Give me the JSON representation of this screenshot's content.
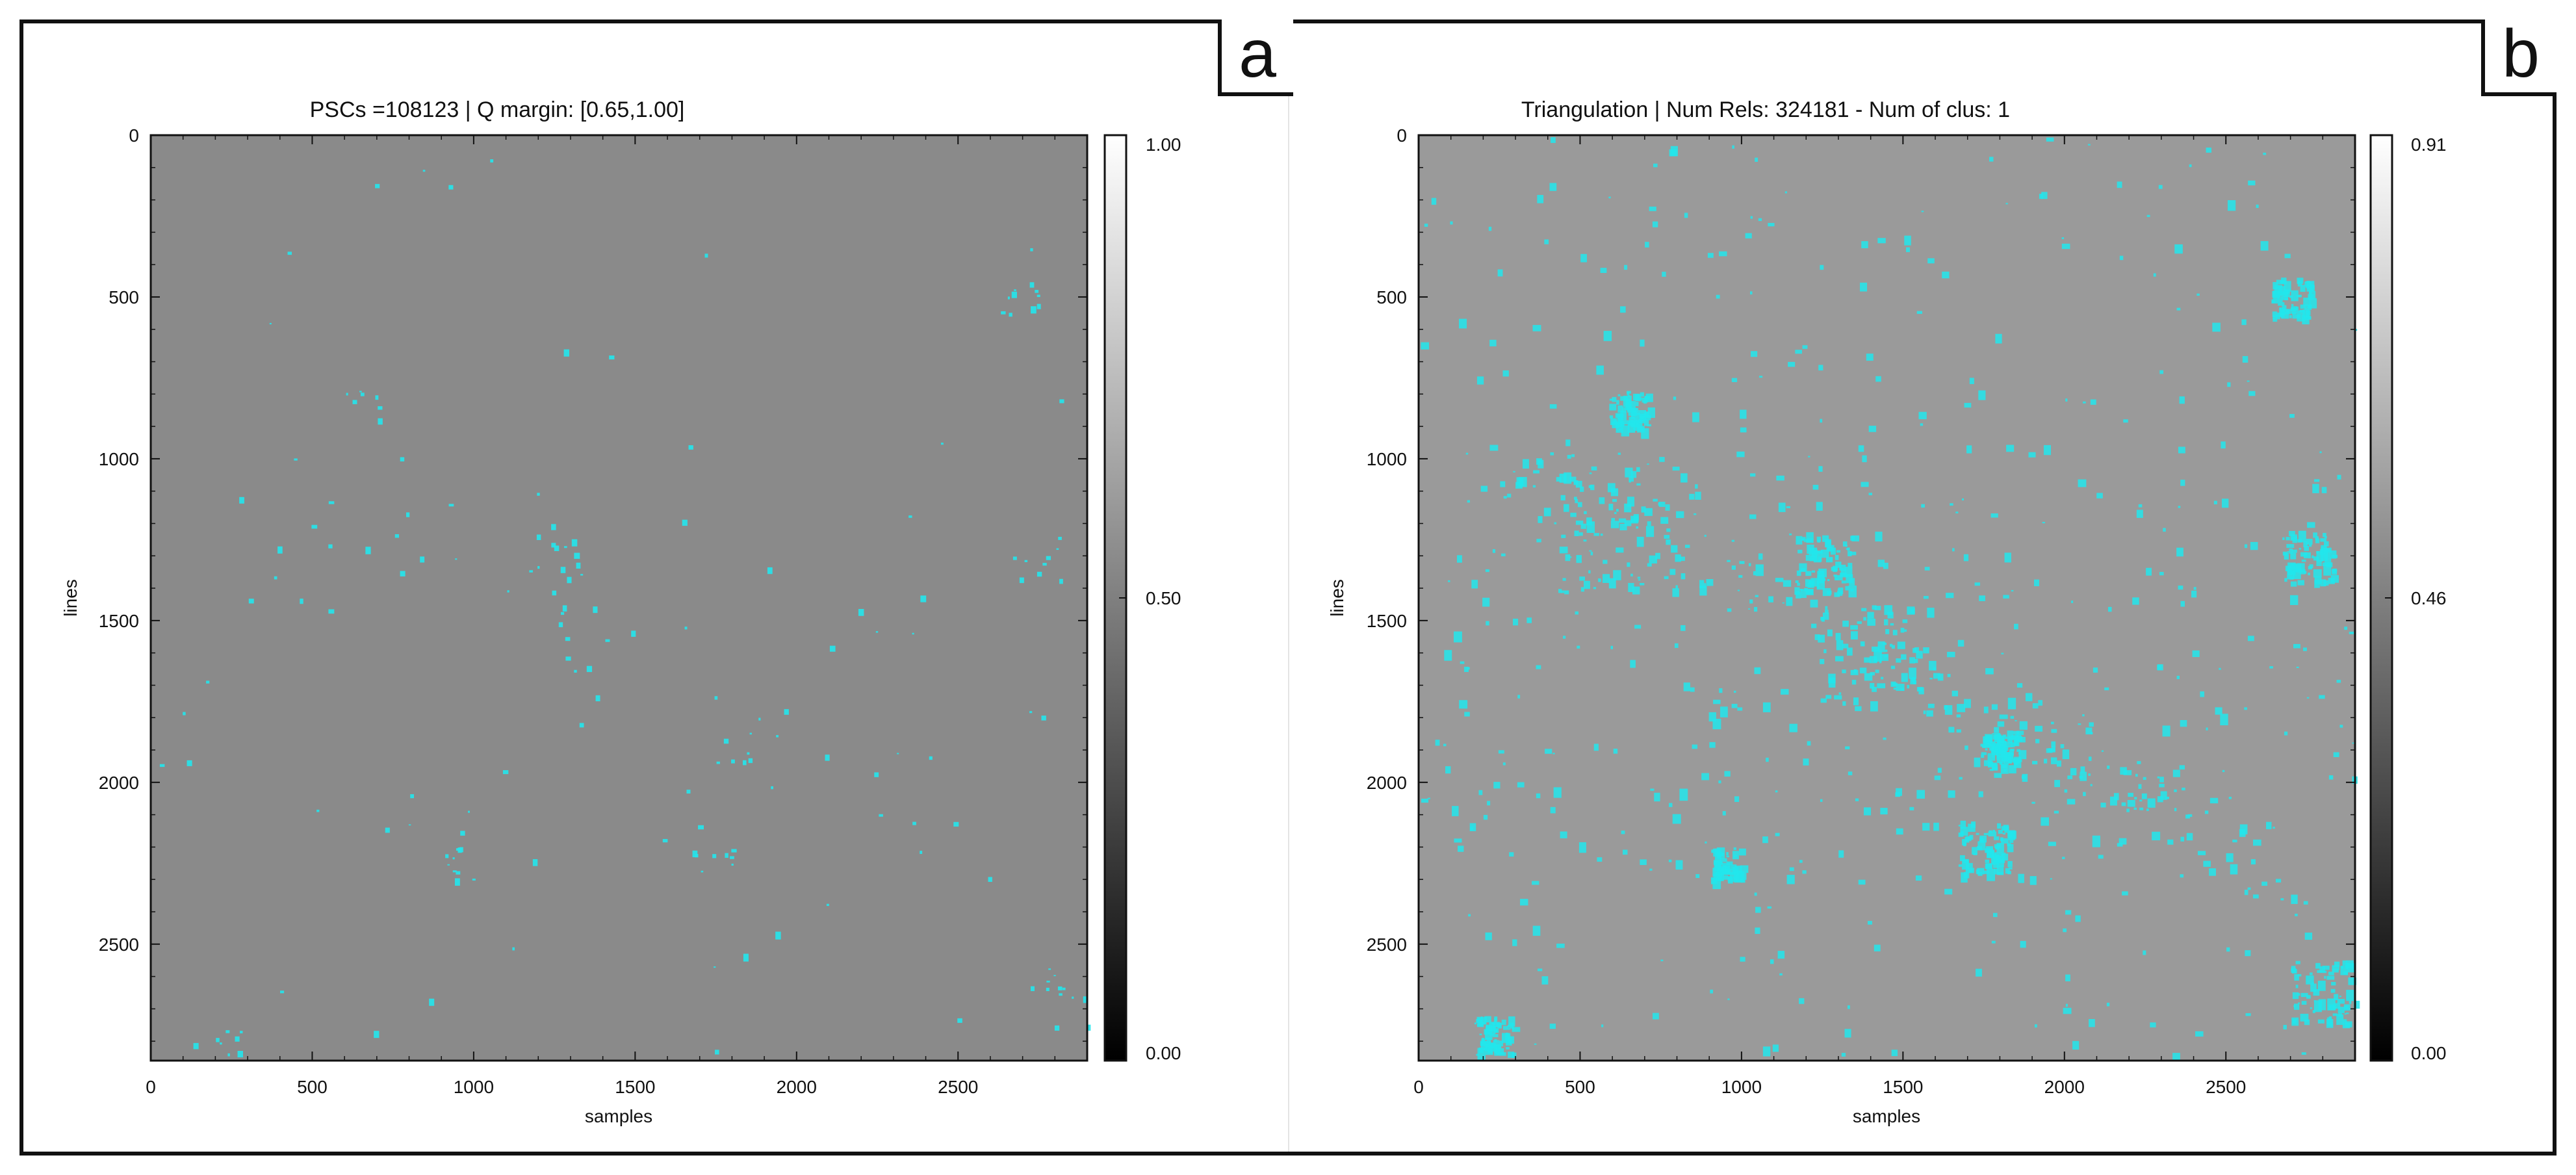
{
  "panels": [
    {
      "tag": "a"
    },
    {
      "tag": "b"
    }
  ],
  "chart_data": [
    {
      "type": "heatmap",
      "title": "PSCs =108123 | Q margin: [0.65,1.00]",
      "xlabel": "samples",
      "ylabel": "lines",
      "xlim": [
        0,
        2900
      ],
      "ylim": [
        2860,
        0
      ],
      "x_ticks": [
        0,
        500,
        1000,
        1500,
        2000,
        2500
      ],
      "y_ticks": [
        0,
        500,
        1000,
        1500,
        2000,
        2500
      ],
      "colorbar": {
        "min": 0.0,
        "mid": 0.5,
        "max": 1.0,
        "labels": [
          "1.00",
          "0.50",
          "0.00"
        ],
        "colormap": "gray"
      },
      "point_color": "#22e6ec",
      "background_color": "#8a8a8a",
      "grid": false
    },
    {
      "type": "heatmap",
      "title": "Triangulation | Num Rels: 324181 - Num of clus: 1",
      "xlabel": "samples",
      "ylabel": "lines",
      "xlim": [
        0,
        2900
      ],
      "ylim": [
        2860,
        0
      ],
      "x_ticks": [
        0,
        500,
        1000,
        1500,
        2000,
        2500
      ],
      "y_ticks": [
        0,
        500,
        1000,
        1500,
        2000,
        2500
      ],
      "colorbar": {
        "min": 0.0,
        "mid": 0.46,
        "max": 0.91,
        "labels": [
          "0.91",
          "0.46",
          "0.00"
        ],
        "colormap": "gray"
      },
      "point_color": "#22e6ec",
      "background_color": "#9a9a9a",
      "grid": false
    }
  ]
}
